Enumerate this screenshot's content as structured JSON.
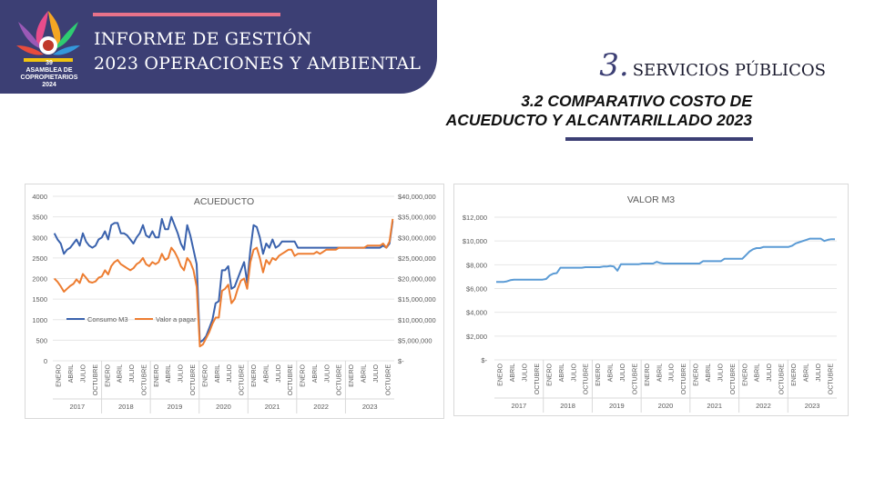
{
  "header": {
    "title_line1": "INFORME DE GESTIÓN",
    "title_line2": "2023 OPERACIONES Y AMBIENTAL",
    "logo_text_line1": "39",
    "logo_text_line2": "ASAMBLEA DE",
    "logo_text_line3": "COPROPIETARIOS",
    "logo_text_line4": "2024"
  },
  "section": {
    "number": "3.",
    "label": "SERVICIOS PÚBLICOS",
    "subtitle_line1": "3.2 COMPARATIVO COSTO DE",
    "subtitle_line2": "ACUEDUCTO Y ALCANTARILLADO 2023"
  },
  "colors": {
    "banner": "#3c3f74",
    "accent_line": "#e8728a",
    "series_blue": "#3a62ad",
    "series_orange": "#ed7d31",
    "valor_line": "#5b9bd5"
  },
  "chart_data": [
    {
      "type": "line",
      "title": "ACUEDUCTO",
      "ylim": [
        0,
        4000
      ],
      "y2lim": [
        0,
        40000000
      ],
      "y_ticks": [
        "4000",
        "3500",
        "3000",
        "2500",
        "2000",
        "1500",
        "1000",
        "500",
        "0"
      ],
      "y2_ticks": [
        "$40,000,000",
        "$35,000,000",
        "$30,000,000",
        "$25,000,000",
        "$20,000,000",
        "$15,000,000",
        "$10,000,000",
        "$5,000,000",
        "$-"
      ],
      "x_month_labels": [
        "ENERO",
        "ABRIL",
        "JULIO",
        "OCTUBRE",
        "ENERO",
        "ABRIL",
        "JULIO",
        "OCTUBRE",
        "ENERO",
        "ABRIL",
        "JULIO",
        "OCTUBRE",
        "ENERO",
        "ABRIL",
        "JULIO",
        "OCTUBRE",
        "ENERO",
        "ABRIL",
        "JULIO",
        "OCTUBRE",
        "ENERO",
        "ABRIL",
        "JULIO",
        "OCTUBRE",
        "ENERO",
        "ABRIL",
        "JULIO",
        "OCTUBRE"
      ],
      "years": [
        "2017",
        "2018",
        "2019",
        "2020",
        "2021",
        "2022",
        "2023"
      ],
      "legend": "bottom-left",
      "series": [
        {
          "name": "Consumo M3",
          "axis": "left",
          "values": [
            3100,
            2950,
            2850,
            2600,
            2700,
            2750,
            2850,
            2950,
            2800,
            3100,
            2900,
            2800,
            2750,
            2800,
            2950,
            3000,
            3150,
            2950,
            3300,
            3350,
            3350,
            3100,
            3100,
            3050,
            2950,
            2850,
            3000,
            3100,
            3300,
            3050,
            3000,
            3150,
            3000,
            3000,
            3450,
            3200,
            3200,
            3500,
            3300,
            3100,
            2850,
            2700,
            3300,
            3050,
            2700,
            2350,
            450,
            500,
            600,
            800,
            1000,
            1400,
            1450,
            2200,
            2200,
            2300,
            1750,
            1800,
            2000,
            2200,
            2400,
            1900,
            2700,
            3300,
            3250,
            3000,
            2600,
            2850,
            2750,
            2950,
            2750,
            2800,
            2900,
            2900,
            2900,
            2900,
            2900,
            2750,
            2750,
            2750,
            2750,
            2750,
            2750,
            2750,
            2750,
            2750,
            2750,
            2750,
            2750,
            2750,
            2750,
            2750,
            2750,
            2750,
            2750,
            2750,
            2750,
            2750,
            2750,
            2750,
            2750,
            2750,
            2750,
            2750,
            2800,
            2750,
            2850,
            3400
          ]
        },
        {
          "name": "Valor a pagar",
          "axis": "right",
          "values": [
            20000000,
            19200000,
            18100000,
            16800000,
            17500000,
            18200000,
            18700000,
            19800000,
            18900000,
            21100000,
            20200000,
            19200000,
            19000000,
            19300000,
            20200000,
            20500000,
            22000000,
            21000000,
            23000000,
            24000000,
            24500000,
            23500000,
            23000000,
            22500000,
            22000000,
            22500000,
            23500000,
            24000000,
            25000000,
            23500000,
            23000000,
            24000000,
            23500000,
            24000000,
            26000000,
            24500000,
            25000000,
            27500000,
            26500000,
            25000000,
            23000000,
            22000000,
            25000000,
            24000000,
            22000000,
            18000000,
            3500000,
            4000000,
            5500000,
            7000000,
            9000000,
            10500000,
            10500000,
            17000000,
            17500000,
            18500000,
            14000000,
            15000000,
            17500000,
            19500000,
            20000000,
            17500000,
            24000000,
            27000000,
            27500000,
            25000000,
            21500000,
            24500000,
            23500000,
            25000000,
            24500000,
            25500000,
            26000000,
            26500000,
            27000000,
            27000000,
            25500000,
            26000000,
            26000000,
            26000000,
            26000000,
            26000000,
            26000000,
            26500000,
            26000000,
            26500000,
            27000000,
            27000000,
            27000000,
            27000000,
            27500000,
            27500000,
            27500000,
            27500000,
            27500000,
            27500000,
            27500000,
            27500000,
            27500000,
            28000000,
            28000000,
            28000000,
            28000000,
            28000000,
            28500000,
            27500000,
            29000000,
            34500000
          ]
        }
      ]
    },
    {
      "type": "line",
      "title": "VALOR M3",
      "ylim": [
        0,
        12000
      ],
      "y_ticks": [
        "$12,000",
        "$10,000",
        "$8,000",
        "$6,000",
        "$4,000",
        "$2,000",
        "$-"
      ],
      "x_month_labels": [
        "ENERO",
        "ABRIL",
        "JULIO",
        "OCTUBRE",
        "ENERO",
        "ABRIL",
        "JULIO",
        "OCTUBRE",
        "ENERO",
        "ABRIL",
        "JULIO",
        "OCTUBRE",
        "ENERO",
        "ABRIL",
        "JULIO",
        "OCTUBRE",
        "ENERO",
        "ABRIL",
        "JULIO",
        "OCTUBRE",
        "ENERO",
        "ABRIL",
        "JULIO",
        "OCTUBRE",
        "ENERO",
        "ABRIL",
        "JULIO",
        "OCTUBRE"
      ],
      "years": [
        "2017",
        "2018",
        "2019",
        "2020",
        "2021",
        "2022",
        "2023"
      ],
      "series": [
        {
          "name": "Valor M3",
          "values": [
            6550,
            6550,
            6550,
            6600,
            6700,
            6750,
            6750,
            6750,
            6750,
            6750,
            6750,
            6750,
            6750,
            6750,
            6800,
            7100,
            7250,
            7300,
            7750,
            7750,
            7750,
            7750,
            7750,
            7750,
            7750,
            7800,
            7800,
            7800,
            7800,
            7800,
            7850,
            7850,
            7900,
            7850,
            7500,
            8050,
            8050,
            8050,
            8050,
            8050,
            8050,
            8100,
            8100,
            8100,
            8100,
            8250,
            8150,
            8100,
            8100,
            8100,
            8100,
            8100,
            8100,
            8100,
            8100,
            8100,
            8100,
            8100,
            8300,
            8300,
            8300,
            8300,
            8300,
            8300,
            8500,
            8500,
            8500,
            8500,
            8500,
            8500,
            8800,
            9100,
            9300,
            9400,
            9400,
            9500,
            9500,
            9500,
            9500,
            9500,
            9500,
            9500,
            9500,
            9600,
            9800,
            9900,
            10000,
            10100,
            10200,
            10200,
            10200,
            10200,
            10000,
            10100,
            10150,
            10150
          ]
        }
      ]
    }
  ]
}
